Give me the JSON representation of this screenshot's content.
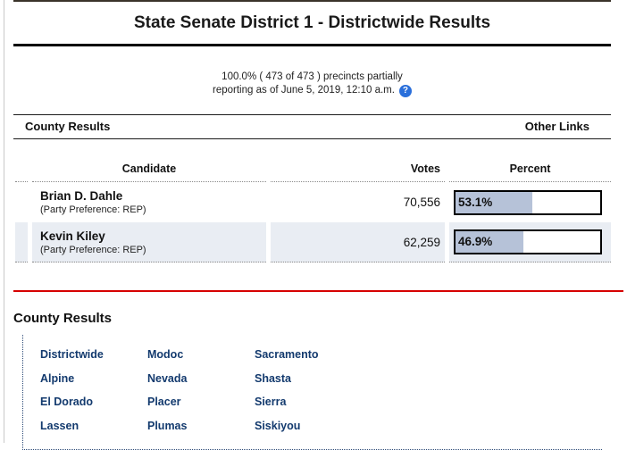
{
  "header": {
    "title": "State Senate District 1 - Districtwide Results"
  },
  "reporting": {
    "line1": "100.0% ( 473 of 473 ) precincts partially",
    "line2": "reporting as of June 5, 2019, 12:10 a.m.",
    "help_icon": "?"
  },
  "section_bar": {
    "left_label": "County Results",
    "right_label": "Other Links"
  },
  "results_table": {
    "headers": {
      "candidate": "Candidate",
      "votes": "Votes",
      "percent": "Percent"
    },
    "rows": [
      {
        "name": "Brian D. Dahle",
        "party": "(Party Preference: REP)",
        "votes": "70,556",
        "percent_label": "53.1%",
        "percent_value": 53.1
      },
      {
        "name": "Kevin Kiley",
        "party": "(Party Preference: REP)",
        "votes": "62,259",
        "percent_label": "46.9%",
        "percent_value": 46.9
      }
    ]
  },
  "county_results": {
    "heading": "County Results",
    "links": [
      "Districtwide",
      "Alpine",
      "El Dorado",
      "Lassen",
      "Modoc",
      "Nevada",
      "Placer",
      "Plumas",
      "Sacramento",
      "Shasta",
      "Sierra",
      "Siskiyou"
    ]
  },
  "colors": {
    "bar_fill": "#b6c2d8",
    "bar_border": "#000000",
    "alt_row_bg": "#e9edf3",
    "red_divider": "#d60000",
    "link_color": "#133a6e",
    "help_icon_bg": "#2a6fdb"
  }
}
